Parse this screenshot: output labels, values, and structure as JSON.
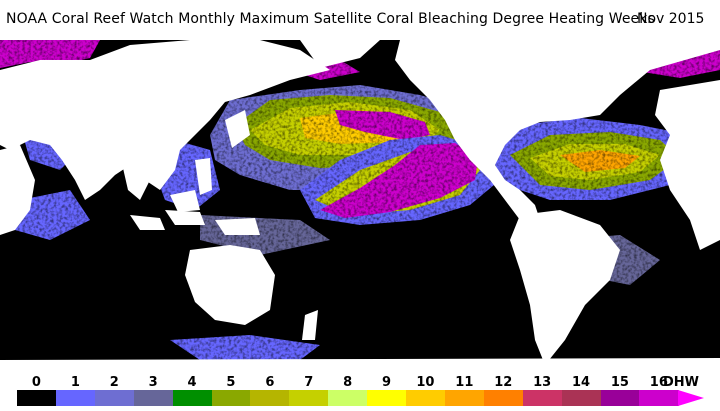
{
  "title": "NOAA Coral Reef Watch Monthly Maximum Satellite Coral Bleaching Degree Heating Weeks",
  "date": "Nov 2015",
  "legend": {
    "unit": "DHW",
    "ticks": [
      "0",
      "1",
      "2",
      "3",
      "4",
      "5",
      "6",
      "7",
      "8",
      "9",
      "10",
      "11",
      "12",
      "13",
      "14",
      "15",
      "16"
    ],
    "colors": [
      "#000000",
      "#6666ff",
      "#6e6ed2",
      "#666699",
      "#008f00",
      "#8aa800",
      "#b5b500",
      "#c5d000",
      "#ccff66",
      "#ffff00",
      "#ffcc00",
      "#ffa500",
      "#ff8000",
      "#cc3366",
      "#aa3355",
      "#990099",
      "#cc00cc"
    ],
    "arrow_color": "#ff00ff"
  },
  "map": {
    "ocean_color": "#000000",
    "land_color": "#ffffff"
  }
}
